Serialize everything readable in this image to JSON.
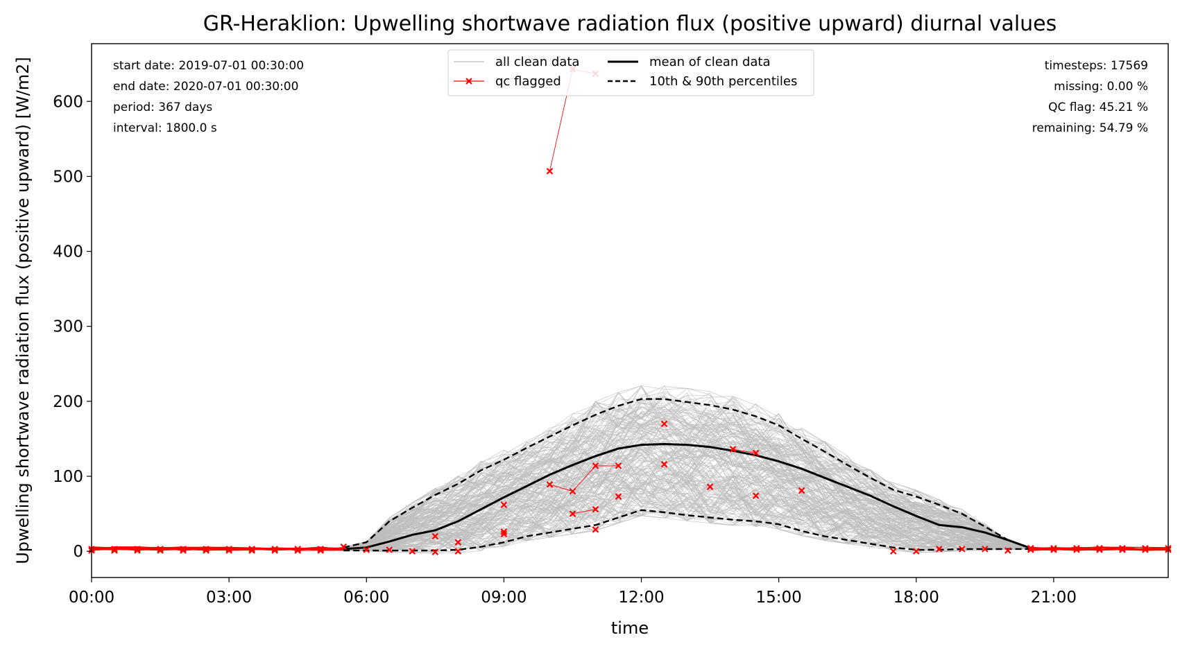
{
  "chart_data": {
    "type": "line",
    "title": "GR-Heraklion: Upwelling shortwave radiation flux (positive upward) diurnal values",
    "xlabel": "time",
    "ylabel": "Upwelling shortwave radiation flux (positive upward) [W/m2]",
    "xlim": [
      0,
      23.5
    ],
    "ylim": [
      -35,
      677
    ],
    "x_ticks": [
      0,
      3,
      6,
      9,
      12,
      15,
      18,
      21
    ],
    "x_tick_labels": [
      "00:00",
      "03:00",
      "06:00",
      "09:00",
      "12:00",
      "15:00",
      "18:00",
      "21:00"
    ],
    "y_ticks": [
      0,
      100,
      200,
      300,
      400,
      500,
      600
    ],
    "y_tick_labels": [
      "0",
      "100",
      "200",
      "300",
      "400",
      "500",
      "600"
    ],
    "grid": false,
    "legend_placement": "top-center",
    "legend": [
      {
        "label": "all clean data",
        "style": "thin-gray"
      },
      {
        "label": "qc flagged",
        "style": "red-x"
      },
      {
        "label": "mean of clean data",
        "style": "black-solid"
      },
      {
        "label": "10th & 90th percentiles",
        "style": "black-dashed"
      }
    ],
    "info_left": [
      "start date: 2019-07-01 00:30:00",
      "end date: 2020-07-01 00:30:00",
      "period: 367 days",
      "interval: 1800.0 s"
    ],
    "info_right": [
      "timesteps: 17569",
      "missing: 0.00 %",
      "QC flag: 45.21 %",
      "remaining: 54.79 %"
    ],
    "colors": {
      "clean": "#bdbdbd",
      "flagged": "#ff0000",
      "mean": "#000000",
      "percentile": "#000000"
    },
    "series": [
      {
        "name": "mean of clean data",
        "x": [
          5.5,
          6,
          6.5,
          7,
          7.5,
          8,
          8.5,
          9,
          9.5,
          10,
          10.5,
          11,
          11.5,
          12,
          12.5,
          13,
          13.5,
          14,
          14.5,
          15,
          15.5,
          16,
          16.5,
          17,
          17.5,
          18,
          18.5,
          19,
          19.5,
          20,
          20.5
        ],
        "y": [
          3,
          5,
          13,
          22,
          28,
          40,
          56,
          72,
          87,
          102,
          115,
          127,
          137,
          142,
          143,
          142,
          139,
          134,
          128,
          120,
          110,
          98,
          86,
          74,
          60,
          47,
          35,
          32,
          25,
          15,
          4
        ]
      },
      {
        "name": "90th percentile",
        "x": [
          5.5,
          6,
          6.5,
          7,
          7.5,
          8,
          8.5,
          9,
          9.5,
          10,
          10.5,
          11,
          11.5,
          12,
          12.5,
          13,
          13.5,
          14,
          14.5,
          15,
          15.5,
          16,
          16.5,
          17,
          17.5,
          18,
          18.5,
          19,
          19.5,
          20,
          20.5
        ],
        "y": [
          5,
          12,
          40,
          58,
          75,
          90,
          108,
          122,
          138,
          153,
          168,
          182,
          194,
          203,
          203,
          199,
          195,
          189,
          180,
          168,
          150,
          133,
          115,
          98,
          82,
          73,
          62,
          50,
          33,
          15,
          4
        ]
      },
      {
        "name": "10th percentile",
        "x": [
          5.5,
          6,
          6.5,
          7,
          7.5,
          8,
          8.5,
          9,
          9.5,
          10,
          10.5,
          11,
          11.5,
          12,
          12.5,
          13,
          13.5,
          14,
          14.5,
          15,
          15.5,
          16,
          16.5,
          17,
          17.5,
          18,
          18.5,
          19,
          19.5,
          20,
          20.5
        ],
        "y": [
          1,
          1,
          1,
          1,
          1,
          2,
          6,
          12,
          20,
          25,
          30,
          35,
          45,
          55,
          52,
          48,
          45,
          42,
          40,
          36,
          27,
          20,
          15,
          10,
          5,
          2,
          2,
          3,
          3,
          3,
          3
        ]
      },
      {
        "name": "qc flagged",
        "points": [
          [
            5.5,
            6
          ],
          [
            6,
            2
          ],
          [
            6.5,
            2
          ],
          [
            7,
            0
          ],
          [
            7.5,
            20
          ],
          [
            7.5,
            -1
          ],
          [
            8,
            12
          ],
          [
            8,
            0
          ],
          [
            9,
            62
          ],
          [
            9,
            26
          ],
          [
            9,
            23
          ],
          [
            10,
            507
          ],
          [
            10.5,
            643
          ],
          [
            11,
            637
          ],
          [
            10,
            89
          ],
          [
            10.5,
            80
          ],
          [
            11,
            114
          ],
          [
            11.5,
            114
          ],
          [
            10.5,
            50
          ],
          [
            11,
            56
          ],
          [
            11,
            29
          ],
          [
            11.5,
            73
          ],
          [
            12.5,
            170
          ],
          [
            12.5,
            116
          ],
          [
            13.5,
            86
          ],
          [
            14,
            136
          ],
          [
            14.5,
            131
          ],
          [
            14.5,
            74
          ],
          [
            15.5,
            81
          ],
          [
            17.5,
            0
          ],
          [
            18,
            0
          ],
          [
            18.5,
            3
          ],
          [
            19,
            3
          ],
          [
            19.5,
            3
          ],
          [
            20,
            1
          ],
          [
            20.5,
            4
          ]
        ]
      }
    ]
  }
}
